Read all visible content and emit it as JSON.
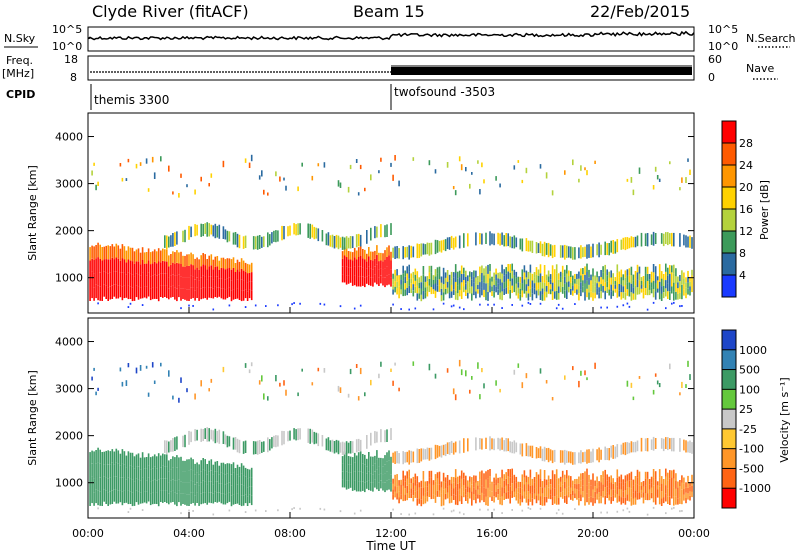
{
  "header": {
    "station": "Clyde River (fitACF)",
    "beam": "Beam 15",
    "date": "22/Feb/2015"
  },
  "top_panels": {
    "nsky_label": "N.Sky",
    "nsky_ticks": [
      "10^5",
      "10^0"
    ],
    "nsearch_label": "N.Search",
    "nsearch_ticks": [
      "10^5",
      "10^0"
    ],
    "freq_label": "Freq.",
    "freq_unit": "[MHz]",
    "freq_ticks": [
      "18",
      "8"
    ],
    "nave_label": "Nave",
    "nave_ticks": [
      "60",
      "0"
    ],
    "cpid_label": "CPID",
    "cpid_segments": [
      {
        "name": "themis 3300",
        "start_hour": 0
      },
      {
        "name": "twofsound -3503",
        "start_hour": 12
      }
    ]
  },
  "chart_data": [
    {
      "type": "heatmap",
      "name": "power",
      "ylabel": "Slant Range [km]",
      "ylim": [
        250,
        4500
      ],
      "yticks": [
        1000,
        2000,
        3000,
        4000
      ],
      "xlim": [
        0,
        24
      ],
      "colorbar": {
        "label": "Power [dB]",
        "ticks": [
          "28",
          "24",
          "20",
          "16",
          "12",
          "8",
          "4"
        ],
        "colors": [
          "#ff0000",
          "#ff5a00",
          "#ff9600",
          "#ffd200",
          "#b4d23c",
          "#3c9a5a",
          "#2a6aa0",
          "#1a3aff"
        ]
      }
    },
    {
      "type": "heatmap",
      "name": "velocity",
      "ylabel": "Slant Range [km]",
      "ylim": [
        250,
        4500
      ],
      "yticks": [
        1000,
        2000,
        3000,
        4000
      ],
      "xlim": [
        0,
        24
      ],
      "xlabel": "Time UT",
      "xticks": [
        "00:00",
        "04:00",
        "08:00",
        "12:00",
        "16:00",
        "20:00",
        "00:00"
      ],
      "colorbar": {
        "label": "Velocity [m s⁻¹]",
        "ticks": [
          "1000",
          "500",
          "100",
          "25",
          "-25",
          "-100",
          "-500",
          "-1000"
        ],
        "colors": [
          "#1e46c8",
          "#3282b4",
          "#3c9a64",
          "#64c83c",
          "#c8c8c8",
          "#ffc832",
          "#ff9628",
          "#ff6414",
          "#ff0000"
        ]
      }
    }
  ]
}
